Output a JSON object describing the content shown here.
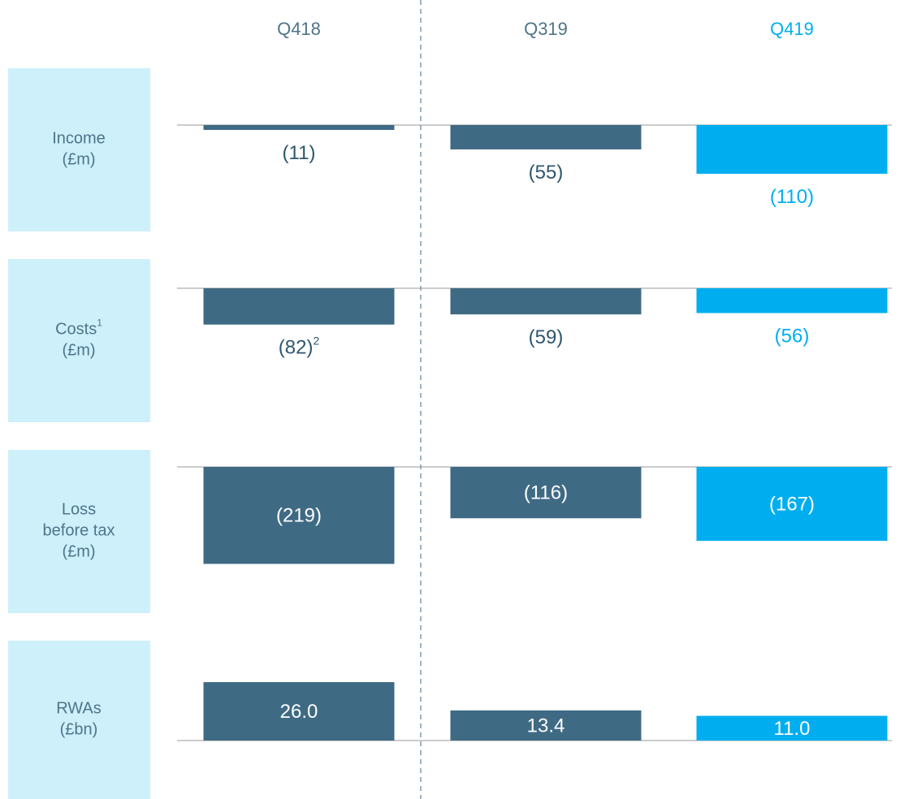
{
  "chart_data": {
    "type": "bar",
    "categories": [
      "Q418",
      "Q319",
      "Q419"
    ],
    "colors": [
      "#3f6a84",
      "#3f6a84",
      "#00aeef"
    ],
    "label_colors": [
      "#4f7489",
      "#4f7489",
      "#00aeef"
    ],
    "panels": [
      {
        "label": [
          "Income",
          "(£m)"
        ],
        "values": [
          -11,
          -55,
          -110
        ],
        "value_labels": [
          "(11)",
          "(55)",
          "(110)"
        ],
        "ylim": [
          -220,
          0
        ],
        "label_position": "below"
      },
      {
        "label": [
          "Costs",
          "(£m)"
        ],
        "label_sup": "1",
        "values": [
          -82,
          -59,
          -56
        ],
        "value_labels": [
          "(82)",
          "(59)",
          "(56)"
        ],
        "value_label_sup": [
          "2",
          null,
          null
        ],
        "ylim": [
          -220,
          0
        ],
        "label_position": "below"
      },
      {
        "label": [
          "Loss",
          "before tax",
          "(£m)"
        ],
        "values": [
          -219,
          -116,
          -167
        ],
        "value_labels": [
          "(219)",
          "(116)",
          "(167)"
        ],
        "ylim": [
          -220,
          0
        ],
        "label_position": "inside"
      },
      {
        "label": [
          "RWAs",
          "(£bn)"
        ],
        "values": [
          26.0,
          13.4,
          11.0
        ],
        "value_labels": [
          "26.0",
          "13.4",
          "11.0"
        ],
        "ylim": [
          0,
          30
        ],
        "label_position": "inside"
      }
    ]
  }
}
